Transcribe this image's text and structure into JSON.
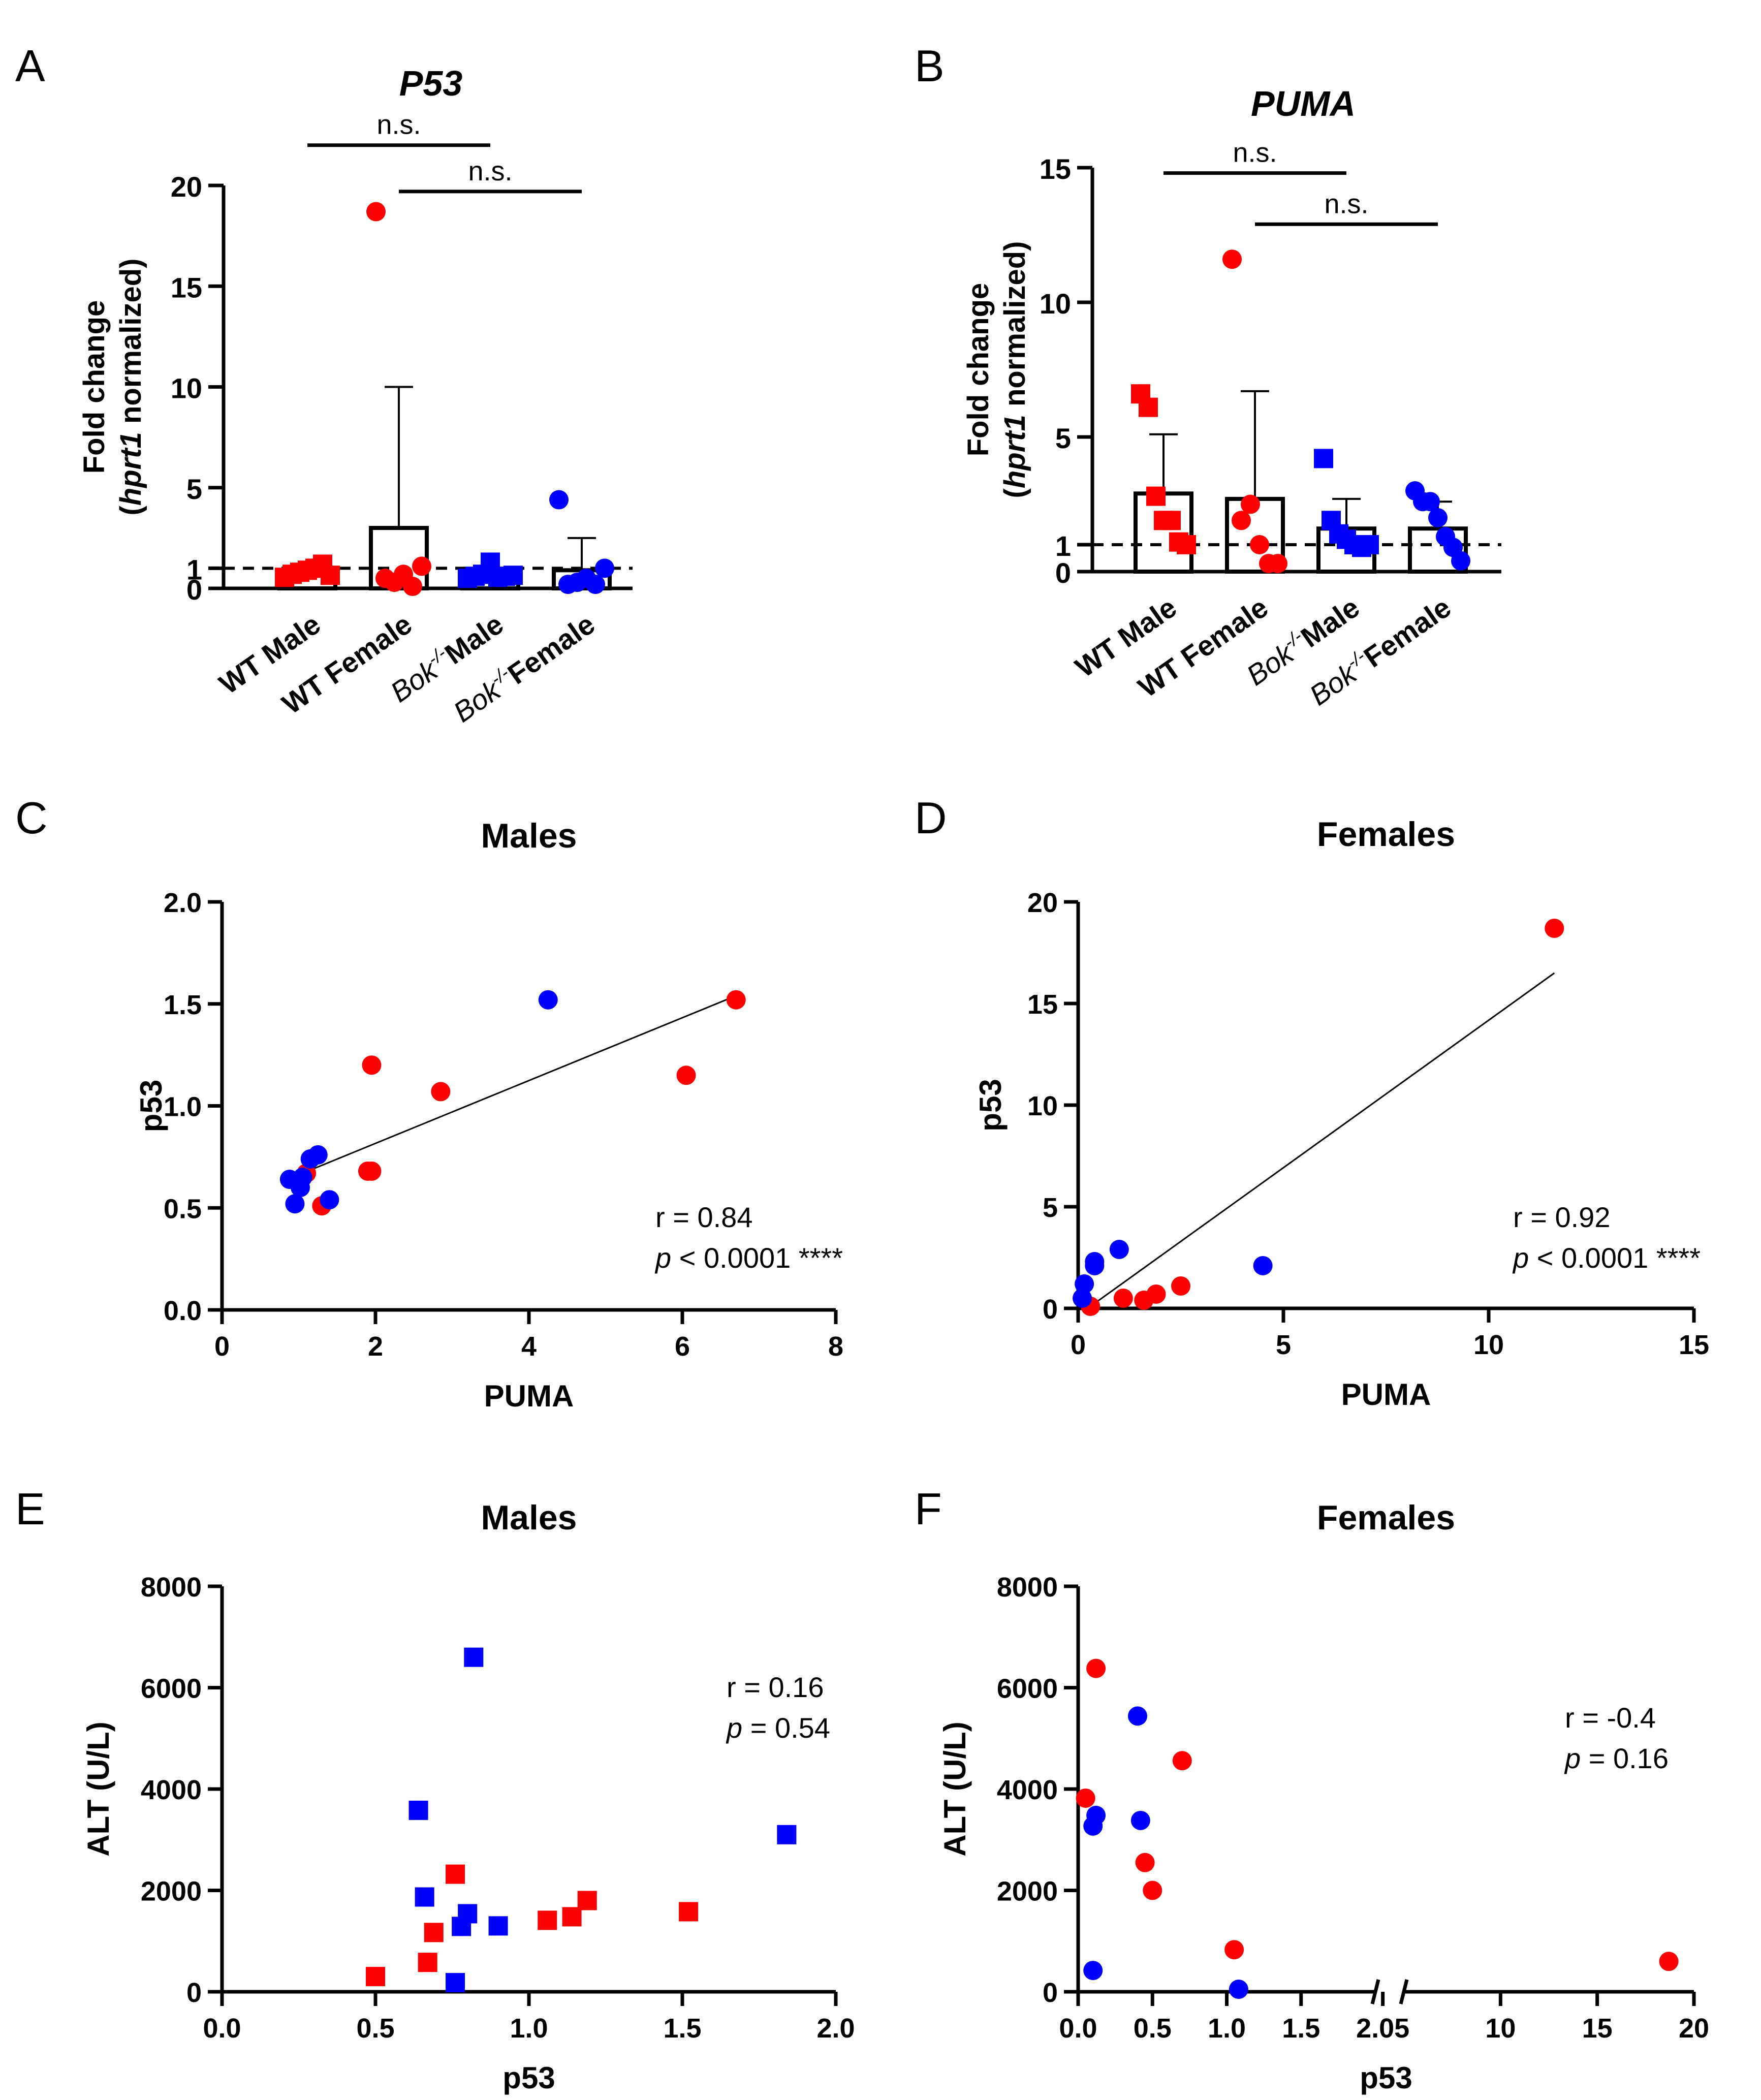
{
  "colors": {
    "wt": "#ff0000",
    "bok": "#0000ff",
    "axis": "#000000"
  },
  "chart_data": [
    {
      "id": "A",
      "type": "bar",
      "panel_label": "A",
      "title": "P53",
      "ylabel_line1": "Fold change",
      "ylabel_line2_open": "(",
      "ylabel_line2_italic": "hprt1",
      "ylabel_line2_rest": " normalized)",
      "ylim": [
        0,
        20
      ],
      "yticks": [
        0,
        1,
        5,
        10,
        15,
        20
      ],
      "reference_line": 1,
      "categories": [
        {
          "label_pre": "",
          "label_mid": "",
          "label_post": "WT Male",
          "marker": "square",
          "color": "#ff0000",
          "mean": 0.8,
          "sd_upper": null,
          "points": [
            0.55,
            0.7,
            0.8,
            0.9,
            1.0,
            1.2,
            0.65
          ]
        },
        {
          "label_pre": "",
          "label_mid": "",
          "label_post": "WT Female",
          "marker": "circle",
          "color": "#ff0000",
          "mean": 3.0,
          "sd_upper": 10.0,
          "points": [
            18.7,
            0.5,
            0.3,
            0.7,
            0.1,
            1.1
          ]
        },
        {
          "label_pre": "Bok",
          "label_mid": "-/-",
          "label_post": "Male",
          "marker": "square",
          "color": "#0000ff",
          "mean": 0.6,
          "sd_upper": null,
          "points": [
            0.5,
            0.6,
            0.7,
            1.3,
            0.55,
            0.6,
            0.65
          ]
        },
        {
          "label_pre": "Bok",
          "label_mid": "-/-",
          "label_post": "Female",
          "marker": "circle",
          "color": "#0000ff",
          "mean": 0.9,
          "sd_upper": 2.5,
          "points": [
            4.4,
            0.2,
            0.3,
            0.5,
            0.2,
            1.0
          ]
        }
      ],
      "significance": [
        {
          "from": 0,
          "to": 2,
          "value": 22,
          "label": "n.s."
        },
        {
          "from": 1,
          "to": 3,
          "value": 19.7,
          "label": "n.s."
        }
      ]
    },
    {
      "id": "B",
      "type": "bar",
      "panel_label": "B",
      "title": "PUMA",
      "ylabel_line1": "Fold change",
      "ylabel_line2_open": "(",
      "ylabel_line2_italic": "hprt1",
      "ylabel_line2_rest": " normalized)",
      "ylim": [
        0,
        15
      ],
      "yticks": [
        0,
        1,
        5,
        10,
        15
      ],
      "reference_line": 1,
      "categories": [
        {
          "label_pre": "",
          "label_mid": "",
          "label_post": "WT Male",
          "marker": "square",
          "color": "#ff0000",
          "mean": 2.9,
          "sd_upper": 5.1,
          "points": [
            6.6,
            6.1,
            2.8,
            1.9,
            1.9,
            1.1,
            1.0
          ]
        },
        {
          "label_pre": "",
          "label_mid": "",
          "label_post": "WT Female",
          "marker": "circle",
          "color": "#ff0000",
          "mean": 2.7,
          "sd_upper": 6.7,
          "points": [
            11.6,
            1.9,
            2.5,
            1.0,
            0.3,
            0.3
          ]
        },
        {
          "label_pre": "Bok",
          "label_mid": "-/-",
          "label_post": "Male",
          "marker": "square",
          "color": "#0000ff",
          "mean": 1.6,
          "sd_upper": 2.7,
          "points": [
            4.2,
            1.9,
            1.4,
            1.2,
            1.0,
            0.9,
            1.0
          ]
        },
        {
          "label_pre": "Bok",
          "label_mid": "-/-",
          "label_post": "Female",
          "marker": "circle",
          "color": "#0000ff",
          "mean": 1.6,
          "sd_upper": 2.6,
          "points": [
            3.0,
            2.6,
            2.6,
            2.0,
            1.3,
            0.9,
            0.4
          ]
        }
      ],
      "significance": [
        {
          "from": 0,
          "to": 2,
          "value": 14.8,
          "label": "n.s."
        },
        {
          "from": 1,
          "to": 3,
          "value": 12.9,
          "label": "n.s."
        }
      ]
    },
    {
      "id": "C",
      "type": "scatter",
      "panel_label": "C",
      "title": "Males",
      "xlabel": "PUMA",
      "ylabel": "p53",
      "xlim": [
        0,
        8
      ],
      "ylim": [
        0,
        2
      ],
      "xticks": [
        0,
        2,
        4,
        6,
        8
      ],
      "yticks": [
        0,
        0.5,
        1,
        1.5,
        2
      ],
      "xtick_labels": [
        "0",
        "2",
        "4",
        "6",
        "8"
      ],
      "ytick_labels": [
        "0.0",
        "0.5",
        "1.0",
        "1.5",
        "2.0"
      ],
      "marker": "circle",
      "series": [
        {
          "name": "WT",
          "color": "#ff0000",
          "points": [
            [
              1.1,
              0.67
            ],
            [
              1.3,
              0.51
            ],
            [
              1.9,
              0.68
            ],
            [
              1.95,
              0.68
            ],
            [
              1.95,
              1.2
            ],
            [
              2.85,
              1.07
            ],
            [
              6.05,
              1.15
            ],
            [
              6.7,
              1.52
            ]
          ]
        },
        {
          "name": "Bok-/-",
          "color": "#0000ff",
          "points": [
            [
              0.88,
              0.64
            ],
            [
              0.95,
              0.52
            ],
            [
              1.02,
              0.6
            ],
            [
              1.05,
              0.65
            ],
            [
              1.15,
              0.74
            ],
            [
              1.25,
              0.76
            ],
            [
              1.4,
              0.54
            ],
            [
              4.25,
              1.52
            ]
          ]
        }
      ],
      "fit": {
        "x": [
          1.05,
          6.7
        ],
        "y": [
          0.67,
          1.54
        ]
      },
      "stats_r": "r = 0.84",
      "stats_p_italic": "p",
      "stats_p_rest": " < 0.0001 ****"
    },
    {
      "id": "D",
      "type": "scatter",
      "panel_label": "D",
      "title": "Females",
      "xlabel": "PUMA",
      "ylabel": "p53",
      "xlim": [
        0,
        15
      ],
      "ylim": [
        0,
        20
      ],
      "xticks": [
        0,
        5,
        10,
        15
      ],
      "yticks": [
        0,
        5,
        10,
        15,
        20
      ],
      "xtick_labels": [
        "0",
        "5",
        "10",
        "15"
      ],
      "ytick_labels": [
        "0",
        "5",
        "10",
        "15",
        "20"
      ],
      "marker": "circle",
      "series": [
        {
          "name": "WT",
          "color": "#ff0000",
          "points": [
            [
              0.3,
              0.1
            ],
            [
              1.1,
              0.5
            ],
            [
              1.6,
              0.4
            ],
            [
              1.9,
              0.7
            ],
            [
              2.5,
              1.1
            ],
            [
              11.6,
              18.7
            ]
          ]
        },
        {
          "name": "Bok-/-",
          "color": "#0000ff",
          "points": [
            [
              0.1,
              0.5
            ],
            [
              0.15,
              1.2
            ],
            [
              0.4,
              2.1
            ],
            [
              0.4,
              2.3
            ],
            [
              1.0,
              2.9
            ],
            [
              4.5,
              2.1
            ]
          ]
        }
      ],
      "fit": {
        "x": [
          0.3,
          11.6
        ],
        "y": [
          0.1,
          16.5
        ]
      },
      "stats_r": "r = 0.92",
      "stats_p_italic": "p",
      "stats_p_rest": " < 0.0001 ****"
    },
    {
      "id": "E",
      "type": "scatter",
      "panel_label": "E",
      "title": "Males",
      "xlabel": "p53",
      "ylabel": "ALT (U/L)",
      "xlim": [
        0,
        2
      ],
      "ylim": [
        0,
        8000
      ],
      "xticks": [
        0,
        0.5,
        1,
        1.5,
        2
      ],
      "yticks": [
        0,
        2000,
        4000,
        6000,
        8000
      ],
      "xtick_labels": [
        "0.0",
        "0.5",
        "1.0",
        "1.5",
        "2.0"
      ],
      "ytick_labels": [
        "0",
        "2000",
        "4000",
        "6000",
        "8000"
      ],
      "marker": "square",
      "series": [
        {
          "name": "WT",
          "color": "#ff0000",
          "points": [
            [
              0.5,
              300
            ],
            [
              0.67,
              580
            ],
            [
              0.69,
              1170
            ],
            [
              0.76,
              2320
            ],
            [
              1.06,
              1410
            ],
            [
              1.14,
              1480
            ],
            [
              1.19,
              1800
            ],
            [
              1.52,
              1580
            ]
          ]
        },
        {
          "name": "Bok-/-",
          "color": "#0000ff",
          "points": [
            [
              0.64,
              3580
            ],
            [
              0.66,
              1870
            ],
            [
              0.76,
              180
            ],
            [
              0.78,
              1290
            ],
            [
              0.8,
              1540
            ],
            [
              0.82,
              6600
            ],
            [
              0.9,
              1300
            ],
            [
              1.84,
              3100
            ]
          ]
        }
      ],
      "stats_r": "r = 0.16",
      "stats_p_italic": "p",
      "stats_p_rest": " = 0.54"
    },
    {
      "id": "F",
      "type": "scatter",
      "panel_label": "F",
      "title": "Females",
      "xlabel": "p53",
      "ylabel": "ALT (U/L)",
      "ylim": [
        0,
        8000
      ],
      "yticks": [
        0,
        2000,
        4000,
        6000,
        8000
      ],
      "ytick_labels": [
        "0",
        "2000",
        "4000",
        "6000",
        "8000"
      ],
      "x_break": {
        "segment1": [
          0,
          2
        ],
        "segment2": [
          5,
          20
        ]
      },
      "xtick_values": [
        0,
        0.5,
        1,
        1.5,
        2.05,
        10,
        15,
        20
      ],
      "xtick_labels": [
        "0.0",
        "0.5",
        "1.0",
        "1.5",
        "2.05",
        "10",
        "15",
        "20"
      ],
      "marker": "circle",
      "series": [
        {
          "name": "WT",
          "color": "#ff0000",
          "points": [
            [
              0.05,
              3820
            ],
            [
              0.12,
              6380
            ],
            [
              0.45,
              2550
            ],
            [
              0.5,
              2000
            ],
            [
              0.7,
              4560
            ],
            [
              1.05,
              830
            ],
            [
              18.7,
              600
            ]
          ]
        },
        {
          "name": "Bok-/-",
          "color": "#0000ff",
          "points": [
            [
              0.1,
              3270
            ],
            [
              0.12,
              3480
            ],
            [
              0.1,
              420
            ],
            [
              0.4,
              5440
            ],
            [
              0.42,
              3380
            ],
            [
              1.08,
              50
            ]
          ]
        }
      ],
      "stats_r": "r = -0.4",
      "stats_p_italic": "p",
      "stats_p_rest": " = 0.16"
    }
  ]
}
